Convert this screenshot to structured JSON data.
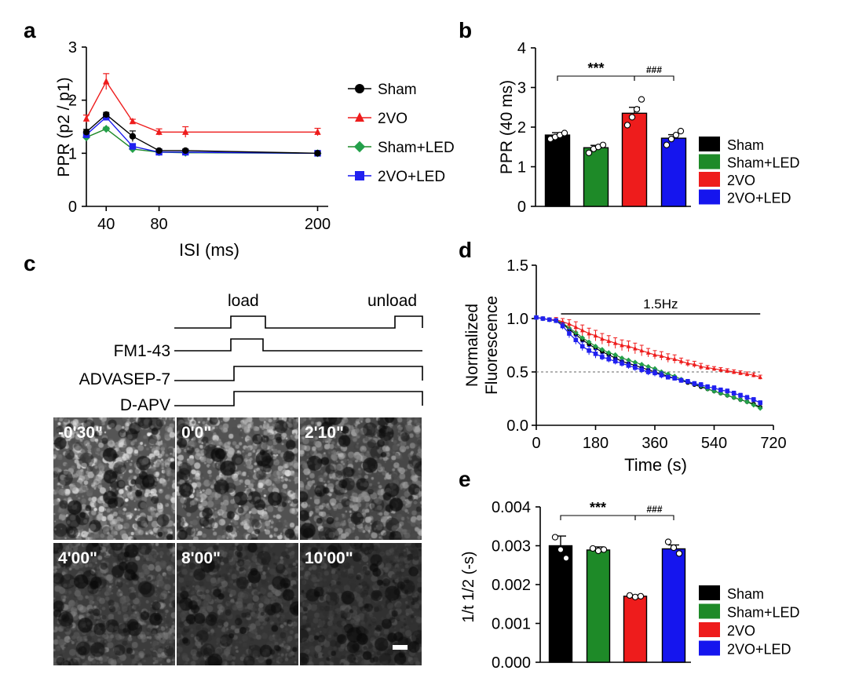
{
  "colors": {
    "Sham": "#000000",
    "2VO": "#ee1c1c",
    "Sham+LED": "#1e8a28",
    "2VO+LED": "#1515ee",
    "led_marker": "#23a04a",
    "blue_marker": "#2020f0"
  },
  "panel_labels": [
    "a",
    "b",
    "c",
    "d",
    "e"
  ],
  "chart_data": [
    {
      "panel": "a",
      "type": "line",
      "title": "",
      "xlabel": "ISI (ms)",
      "ylabel": "PPR (p2 / p1)",
      "xlim": [
        20,
        210
      ],
      "ylim": [
        0,
        3
      ],
      "xticks": [
        40,
        80,
        200
      ],
      "yticks": [
        0,
        1,
        2,
        3
      ],
      "x": [
        25,
        40,
        60,
        80,
        100,
        200
      ],
      "series": [
        {
          "name": "Sham",
          "marker": "circle",
          "values": [
            1.4,
            1.73,
            1.32,
            1.05,
            1.05,
            1.0
          ],
          "errors": [
            0.05,
            0.04,
            0.1,
            0.03,
            0.03,
            0.02
          ]
        },
        {
          "name": "2VO",
          "marker": "triangle",
          "values": [
            1.65,
            2.35,
            1.6,
            1.4,
            1.4,
            1.4
          ],
          "errors": [
            0.07,
            0.15,
            0.04,
            0.06,
            0.1,
            0.07
          ]
        },
        {
          "name": "Sham+LED",
          "marker": "diamond",
          "values": [
            1.3,
            1.46,
            1.08,
            1.02,
            1.01,
            1.0
          ],
          "errors": [
            0.04,
            0.03,
            0.05,
            0.02,
            0.02,
            0.02
          ]
        },
        {
          "name": "2VO+LED",
          "marker": "square",
          "values": [
            1.35,
            1.68,
            1.13,
            1.02,
            1.02,
            1.0
          ],
          "errors": [
            0.04,
            0.05,
            0.05,
            0.02,
            0.02,
            0.02
          ]
        }
      ],
      "legend": [
        "Sham",
        "2VO",
        "Sham+LED",
        "2VO+LED"
      ]
    },
    {
      "panel": "b",
      "type": "bar",
      "title": "",
      "xlabel": "",
      "ylabel": "PPR (40 ms)",
      "ylim": [
        0,
        4
      ],
      "yticks": [
        0,
        1,
        2,
        3,
        4
      ],
      "categories": [
        "Sham",
        "Sham+LED",
        "2VO",
        "2VO+LED"
      ],
      "values": [
        1.8,
        1.48,
        2.35,
        1.72
      ],
      "errors": [
        0.06,
        0.06,
        0.15,
        0.09
      ],
      "points": [
        [
          1.7,
          1.75,
          1.8,
          1.85
        ],
        [
          1.35,
          1.45,
          1.5,
          1.55
        ],
        [
          2.05,
          2.25,
          2.45,
          2.7
        ],
        [
          1.55,
          1.7,
          1.8,
          1.9
        ]
      ],
      "significance": [
        {
          "from": 0,
          "to": 2,
          "label": "***"
        },
        {
          "from": 2,
          "to": 3,
          "label": "###"
        }
      ],
      "legend": [
        "Sham",
        "Sham+LED",
        "2VO",
        "2VO+LED"
      ]
    },
    {
      "panel": "d",
      "type": "line",
      "title": "",
      "xlabel": "Time (s)",
      "ylabel": [
        "Normalized",
        "Fluorescence"
      ],
      "xlim": [
        0,
        720
      ],
      "ylim": [
        0,
        1.5
      ],
      "xticks": [
        0,
        180,
        360,
        540,
        720
      ],
      "yticks": [
        "0.0",
        "0.5",
        "1.0",
        "1.5"
      ],
      "stim_label": "1.5Hz",
      "stim_range": [
        75,
        680
      ],
      "reference_y": 0.5,
      "series": [
        {
          "name": "Sham",
          "marker": "circle",
          "x": [
            0,
            20,
            40,
            60,
            80,
            100,
            120,
            140,
            160,
            180,
            200,
            220,
            240,
            260,
            280,
            300,
            320,
            340,
            360,
            380,
            400,
            420,
            440,
            460,
            480,
            500,
            520,
            540,
            560,
            580,
            600,
            620,
            640,
            660,
            680
          ],
          "values": [
            1.01,
            1.0,
            0.99,
            0.98,
            0.95,
            0.9,
            0.85,
            0.8,
            0.76,
            0.72,
            0.69,
            0.66,
            0.63,
            0.6,
            0.58,
            0.56,
            0.54,
            0.52,
            0.5,
            0.48,
            0.46,
            0.44,
            0.42,
            0.4,
            0.38,
            0.36,
            0.34,
            0.32,
            0.3,
            0.28,
            0.26,
            0.24,
            0.22,
            0.2,
            0.17
          ]
        },
        {
          "name": "Sham+LED",
          "marker": "diamond",
          "x": [
            0,
            20,
            40,
            60,
            80,
            100,
            120,
            140,
            160,
            180,
            200,
            220,
            240,
            260,
            280,
            300,
            320,
            340,
            360,
            380,
            400,
            420,
            440,
            460,
            480,
            500,
            520,
            540,
            560,
            580,
            600,
            620,
            640,
            660,
            680
          ],
          "values": [
            1.01,
            1.0,
            0.99,
            0.98,
            0.96,
            0.91,
            0.87,
            0.82,
            0.78,
            0.74,
            0.71,
            0.68,
            0.66,
            0.63,
            0.61,
            0.59,
            0.57,
            0.55,
            0.53,
            0.5,
            0.48,
            0.46,
            0.43,
            0.41,
            0.39,
            0.37,
            0.34,
            0.32,
            0.3,
            0.28,
            0.26,
            0.24,
            0.22,
            0.19,
            0.16
          ]
        },
        {
          "name": "2VO",
          "marker": "triangle",
          "x": [
            0,
            20,
            40,
            60,
            80,
            100,
            120,
            140,
            160,
            180,
            200,
            220,
            240,
            260,
            280,
            300,
            320,
            340,
            360,
            380,
            400,
            420,
            440,
            460,
            480,
            500,
            520,
            540,
            560,
            580,
            600,
            620,
            640,
            660,
            680
          ],
          "values": [
            1.01,
            1.0,
            0.99,
            0.99,
            0.97,
            0.95,
            0.92,
            0.89,
            0.86,
            0.84,
            0.81,
            0.79,
            0.77,
            0.75,
            0.74,
            0.72,
            0.7,
            0.68,
            0.66,
            0.65,
            0.63,
            0.62,
            0.6,
            0.58,
            0.57,
            0.55,
            0.54,
            0.53,
            0.52,
            0.51,
            0.5,
            0.49,
            0.48,
            0.47,
            0.45
          ],
          "errors": [
            0.01,
            0.01,
            0.01,
            0.02,
            0.03,
            0.04,
            0.05,
            0.05,
            0.05,
            0.05,
            0.05,
            0.05,
            0.05,
            0.05,
            0.05,
            0.05,
            0.05,
            0.04,
            0.04,
            0.04,
            0.04,
            0.04,
            0.03,
            0.03,
            0.03,
            0.03,
            0.02,
            0.02,
            0.02,
            0.02,
            0.02,
            0.02,
            0.02,
            0.02,
            0.02
          ]
        },
        {
          "name": "2VO+LED",
          "marker": "square",
          "x": [
            0,
            20,
            40,
            60,
            80,
            100,
            120,
            140,
            160,
            180,
            200,
            220,
            240,
            260,
            280,
            300,
            320,
            340,
            360,
            380,
            400,
            420,
            440,
            460,
            480,
            500,
            520,
            540,
            560,
            580,
            600,
            620,
            640,
            660,
            680
          ],
          "values": [
            1.01,
            1.0,
            0.99,
            0.98,
            0.93,
            0.86,
            0.8,
            0.74,
            0.7,
            0.67,
            0.64,
            0.62,
            0.6,
            0.58,
            0.56,
            0.54,
            0.52,
            0.5,
            0.49,
            0.47,
            0.45,
            0.44,
            0.42,
            0.41,
            0.39,
            0.38,
            0.36,
            0.35,
            0.33,
            0.32,
            0.3,
            0.28,
            0.26,
            0.24,
            0.21
          ],
          "errors": [
            0.01,
            0.01,
            0.01,
            0.02,
            0.03,
            0.04,
            0.04,
            0.04,
            0.04,
            0.04,
            0.03,
            0.03,
            0.03,
            0.03,
            0.03,
            0.03,
            0.03,
            0.03,
            0.03,
            0.03,
            0.02,
            0.02,
            0.02,
            0.02,
            0.02,
            0.02,
            0.02,
            0.02,
            0.02,
            0.02,
            0.02,
            0.02,
            0.02,
            0.02,
            0.02
          ]
        }
      ]
    },
    {
      "panel": "e",
      "type": "bar",
      "title": "",
      "xlabel": "",
      "ylabel": "1/t 1/2 (-s)",
      "ylim": [
        0,
        0.004
      ],
      "yticks": [
        "0.000",
        "0.001",
        "0.002",
        "0.003",
        "0.004"
      ],
      "categories": [
        "Sham",
        "Sham+LED",
        "2VO",
        "2VO+LED"
      ],
      "values": [
        0.003,
        0.00289,
        0.0017,
        0.00292
      ],
      "errors": [
        0.00025,
        8e-05,
        3e-05,
        0.0001
      ],
      "points": [
        [
          0.00322,
          0.0029,
          0.00268
        ],
        [
          0.00293,
          0.00287,
          0.0029
        ],
        [
          0.00172,
          0.00168,
          0.0017
        ],
        [
          0.0031,
          0.00295,
          0.0028
        ]
      ],
      "significance": [
        {
          "from": 0,
          "to": 2,
          "label": "***"
        },
        {
          "from": 2,
          "to": 3,
          "label": "###"
        }
      ],
      "legend": [
        "Sham",
        "Sham+LED",
        "2VO",
        "2VO+LED"
      ]
    }
  ],
  "protocol": {
    "rows": [
      "",
      "FM1-43",
      "ADVASEP-7",
      "D-APV"
    ],
    "labels": {
      "load": "load",
      "unload": "unload"
    }
  },
  "images": {
    "timestamps": [
      "-0'30\"",
      "0'0\"",
      "2'10\"",
      "4'00\"",
      "8'00\"",
      "10'00\""
    ]
  }
}
